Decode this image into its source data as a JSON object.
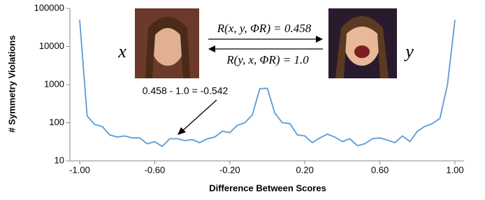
{
  "chart_data": {
    "type": "line",
    "xlabel": "Difference Between Scores",
    "ylabel": "# Symmetry Violations",
    "log_y": true,
    "grid": false,
    "x": [
      -1.0,
      -0.96,
      -0.92,
      -0.88,
      -0.84,
      -0.8,
      -0.76,
      -0.72,
      -0.68,
      -0.64,
      -0.6,
      -0.56,
      -0.52,
      -0.48,
      -0.44,
      -0.4,
      -0.36,
      -0.32,
      -0.28,
      -0.24,
      -0.2,
      -0.16,
      -0.12,
      -0.08,
      -0.04,
      0.0,
      0.04,
      0.08,
      0.12,
      0.16,
      0.2,
      0.24,
      0.28,
      0.32,
      0.36,
      0.4,
      0.44,
      0.48,
      0.52,
      0.56,
      0.6,
      0.64,
      0.68,
      0.72,
      0.76,
      0.8,
      0.84,
      0.88,
      0.92,
      0.96,
      1.0
    ],
    "series": [
      {
        "color": "#5b9bd5",
        "values": [
          50000,
          150,
          90,
          80,
          48,
          42,
          45,
          40,
          40,
          28,
          32,
          24,
          38,
          38,
          34,
          36,
          30,
          38,
          42,
          60,
          55,
          85,
          100,
          160,
          780,
          800,
          180,
          100,
          95,
          48,
          45,
          30,
          40,
          50,
          42,
          32,
          38,
          25,
          28,
          38,
          40,
          35,
          30,
          45,
          32,
          60,
          80,
          95,
          130,
          1000,
          50000
        ]
      }
    ],
    "xlim": [
      -1.0,
      1.0
    ],
    "xticks": [
      {
        "value": -1.0,
        "label": "-1.00"
      },
      {
        "value": -0.6,
        "label": "-0.60"
      },
      {
        "value": -0.2,
        "label": "-0.20"
      },
      {
        "value": 0.2,
        "label": "0.20"
      },
      {
        "value": 0.6,
        "label": "0.60"
      },
      {
        "value": 1.0,
        "label": "1.00"
      }
    ],
    "ylim": [
      10,
      100000
    ],
    "yticks": [
      10,
      100,
      1000,
      10000,
      100000
    ],
    "annotations": {
      "x_var": "x",
      "y_var": "y",
      "forward": "R(x, y, ΦR) = 0.458",
      "backward": "R(y, x, ΦR) = 1.0",
      "difference": "0.458 - 1.0 = -0.542"
    }
  }
}
